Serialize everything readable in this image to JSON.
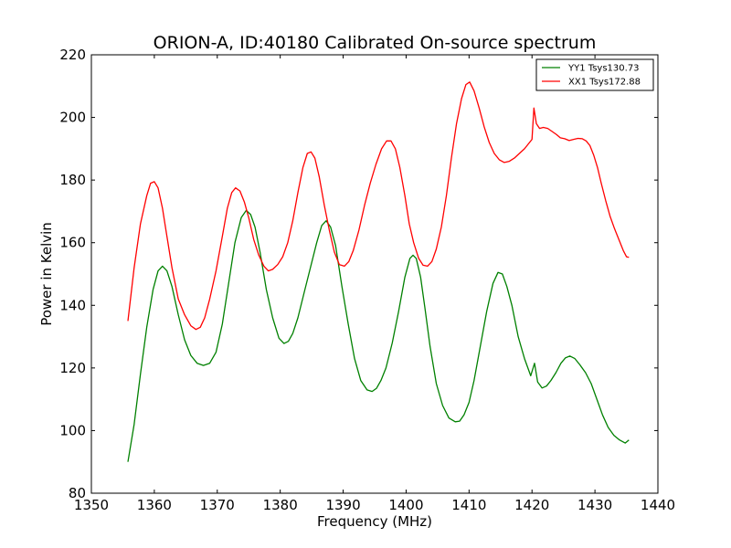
{
  "chart_data": {
    "type": "line",
    "title": "ORION-A, ID:40180 Calibrated On-source spectrum",
    "xlabel": "Frequency (MHz)",
    "ylabel": "Power in Kelvin",
    "xlim": [
      1350,
      1440
    ],
    "ylim": [
      80,
      220
    ],
    "xticks": [
      1350,
      1360,
      1370,
      1380,
      1390,
      1400,
      1410,
      1420,
      1430,
      1440
    ],
    "yticks": [
      80,
      100,
      120,
      140,
      160,
      180,
      200,
      220
    ],
    "grid": false,
    "legend_position": "top-right",
    "series": [
      {
        "name": "YY1 Tsys130.73",
        "color": "#008000",
        "points": [
          [
            1355.8,
            90
          ],
          [
            1356.8,
            102
          ],
          [
            1357.8,
            118
          ],
          [
            1358.8,
            133
          ],
          [
            1359.8,
            145
          ],
          [
            1360.6,
            151
          ],
          [
            1361.3,
            152.5
          ],
          [
            1362.0,
            151
          ],
          [
            1362.8,
            146
          ],
          [
            1363.8,
            137
          ],
          [
            1364.8,
            129
          ],
          [
            1365.8,
            124
          ],
          [
            1366.8,
            121.5
          ],
          [
            1367.8,
            120.8
          ],
          [
            1368.8,
            121.5
          ],
          [
            1369.8,
            125
          ],
          [
            1370.8,
            134
          ],
          [
            1371.8,
            147
          ],
          [
            1372.8,
            160
          ],
          [
            1373.8,
            168
          ],
          [
            1374.6,
            170.3
          ],
          [
            1375.3,
            169
          ],
          [
            1376.0,
            165
          ],
          [
            1376.8,
            157
          ],
          [
            1377.8,
            145
          ],
          [
            1378.8,
            136
          ],
          [
            1379.8,
            129.5
          ],
          [
            1380.6,
            127.8
          ],
          [
            1381.3,
            128.5
          ],
          [
            1382.0,
            131
          ],
          [
            1382.8,
            136
          ],
          [
            1383.8,
            144
          ],
          [
            1384.8,
            152
          ],
          [
            1385.8,
            160
          ],
          [
            1386.6,
            165.5
          ],
          [
            1387.3,
            167
          ],
          [
            1388.0,
            165
          ],
          [
            1388.8,
            159
          ],
          [
            1389.8,
            146
          ],
          [
            1390.8,
            134
          ],
          [
            1391.8,
            123
          ],
          [
            1392.8,
            116
          ],
          [
            1393.8,
            113
          ],
          [
            1394.6,
            112.5
          ],
          [
            1395.3,
            113.5
          ],
          [
            1396.0,
            116
          ],
          [
            1396.8,
            120
          ],
          [
            1397.8,
            128
          ],
          [
            1398.8,
            138
          ],
          [
            1399.8,
            149
          ],
          [
            1400.6,
            155
          ],
          [
            1401.1,
            156
          ],
          [
            1401.6,
            155
          ],
          [
            1402.3,
            149
          ],
          [
            1403.0,
            139
          ],
          [
            1403.8,
            127
          ],
          [
            1404.8,
            115
          ],
          [
            1405.8,
            108
          ],
          [
            1406.8,
            104
          ],
          [
            1407.8,
            102.8
          ],
          [
            1408.5,
            103
          ],
          [
            1409.2,
            105
          ],
          [
            1410.0,
            109
          ],
          [
            1410.8,
            116
          ],
          [
            1411.8,
            127
          ],
          [
            1412.8,
            138
          ],
          [
            1413.8,
            147
          ],
          [
            1414.6,
            150.5
          ],
          [
            1415.3,
            150
          ],
          [
            1416.0,
            146
          ],
          [
            1416.8,
            140
          ],
          [
            1417.8,
            130
          ],
          [
            1418.8,
            123
          ],
          [
            1419.8,
            117.5
          ],
          [
            1420.4,
            121.5
          ],
          [
            1420.9,
            115.5
          ],
          [
            1421.6,
            113.6
          ],
          [
            1422.3,
            114.2
          ],
          [
            1423.0,
            116
          ],
          [
            1423.8,
            118.5
          ],
          [
            1424.6,
            121.5
          ],
          [
            1425.3,
            123.2
          ],
          [
            1426.0,
            123.8
          ],
          [
            1426.8,
            123
          ],
          [
            1427.6,
            121
          ],
          [
            1428.5,
            118.5
          ],
          [
            1429.4,
            115
          ],
          [
            1430.3,
            110
          ],
          [
            1431.2,
            105
          ],
          [
            1432.1,
            101
          ],
          [
            1433.0,
            98.5
          ],
          [
            1433.9,
            97
          ],
          [
            1434.8,
            96
          ],
          [
            1435.4,
            97
          ]
        ]
      },
      {
        "name": "XX1 Tsys172.88",
        "color": "#ff0000",
        "points": [
          [
            1355.8,
            135
          ],
          [
            1356.8,
            152
          ],
          [
            1357.8,
            166
          ],
          [
            1358.8,
            175
          ],
          [
            1359.4,
            179
          ],
          [
            1360.0,
            179.5
          ],
          [
            1360.6,
            177.5
          ],
          [
            1361.3,
            171
          ],
          [
            1362.0,
            162
          ],
          [
            1362.8,
            152
          ],
          [
            1363.8,
            142
          ],
          [
            1364.8,
            137
          ],
          [
            1365.8,
            133.5
          ],
          [
            1366.6,
            132.3
          ],
          [
            1367.3,
            133
          ],
          [
            1368.0,
            136
          ],
          [
            1368.8,
            142
          ],
          [
            1369.8,
            151
          ],
          [
            1370.8,
            162
          ],
          [
            1371.6,
            171
          ],
          [
            1372.3,
            176
          ],
          [
            1372.9,
            177.5
          ],
          [
            1373.6,
            176.5
          ],
          [
            1374.3,
            173
          ],
          [
            1375.0,
            168
          ],
          [
            1375.8,
            161
          ],
          [
            1376.6,
            156
          ],
          [
            1377.4,
            152.5
          ],
          [
            1378.1,
            151
          ],
          [
            1378.8,
            151.5
          ],
          [
            1379.6,
            153
          ],
          [
            1380.4,
            155.5
          ],
          [
            1381.2,
            160
          ],
          [
            1382.0,
            167
          ],
          [
            1382.8,
            176
          ],
          [
            1383.6,
            184
          ],
          [
            1384.3,
            188.5
          ],
          [
            1384.9,
            189
          ],
          [
            1385.5,
            187
          ],
          [
            1386.2,
            181
          ],
          [
            1387.0,
            172
          ],
          [
            1387.8,
            164
          ],
          [
            1388.6,
            157
          ],
          [
            1389.4,
            153
          ],
          [
            1390.2,
            152.5
          ],
          [
            1390.9,
            154
          ],
          [
            1391.6,
            157.5
          ],
          [
            1392.5,
            164
          ],
          [
            1393.4,
            172
          ],
          [
            1394.3,
            179
          ],
          [
            1395.2,
            185
          ],
          [
            1396.1,
            190
          ],
          [
            1396.9,
            192.5
          ],
          [
            1397.6,
            192.5
          ],
          [
            1398.3,
            190
          ],
          [
            1399.0,
            184
          ],
          [
            1399.8,
            175
          ],
          [
            1400.5,
            166
          ],
          [
            1401.2,
            160
          ],
          [
            1402.0,
            155
          ],
          [
            1402.7,
            152.8
          ],
          [
            1403.4,
            152.5
          ],
          [
            1404.1,
            154
          ],
          [
            1404.8,
            158
          ],
          [
            1405.6,
            165
          ],
          [
            1406.4,
            175
          ],
          [
            1407.2,
            187
          ],
          [
            1408.0,
            198
          ],
          [
            1408.8,
            206
          ],
          [
            1409.5,
            210.5
          ],
          [
            1410.1,
            211.3
          ],
          [
            1410.8,
            208.5
          ],
          [
            1411.6,
            203
          ],
          [
            1412.4,
            197
          ],
          [
            1413.2,
            192
          ],
          [
            1414.0,
            188.5
          ],
          [
            1414.8,
            186.5
          ],
          [
            1415.6,
            185.6
          ],
          [
            1416.4,
            186
          ],
          [
            1417.2,
            187
          ],
          [
            1418.0,
            188.5
          ],
          [
            1418.8,
            190
          ],
          [
            1419.6,
            192
          ],
          [
            1420.0,
            193
          ],
          [
            1420.3,
            203
          ],
          [
            1420.7,
            198
          ],
          [
            1421.2,
            196.5
          ],
          [
            1421.8,
            196.8
          ],
          [
            1422.5,
            196.5
          ],
          [
            1423.2,
            195.5
          ],
          [
            1423.9,
            194.5
          ],
          [
            1424.5,
            193.5
          ],
          [
            1425.2,
            193.2
          ],
          [
            1425.9,
            192.6
          ],
          [
            1426.6,
            193
          ],
          [
            1427.3,
            193.3
          ],
          [
            1428.0,
            193.2
          ],
          [
            1428.6,
            192.5
          ],
          [
            1429.2,
            191
          ],
          [
            1429.8,
            188
          ],
          [
            1430.4,
            184
          ],
          [
            1431.0,
            179
          ],
          [
            1431.7,
            173.5
          ],
          [
            1432.4,
            168.5
          ],
          [
            1433.1,
            164.5
          ],
          [
            1433.8,
            161
          ],
          [
            1434.5,
            157.5
          ],
          [
            1435.0,
            155.5
          ],
          [
            1435.4,
            155.3
          ]
        ]
      }
    ]
  }
}
